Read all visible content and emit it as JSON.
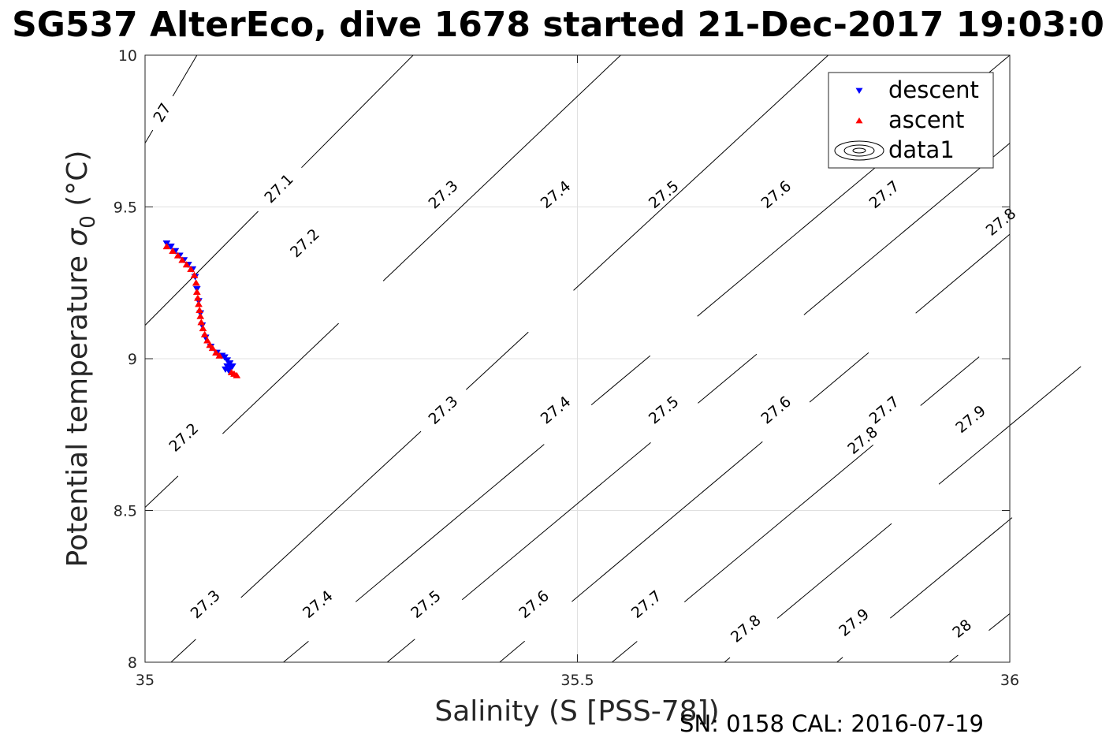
{
  "chart_data": {
    "type": "scatter",
    "title": "SG537 AlterEco, dive 1678 started 21-Dec-2017 19:03:0",
    "xlabel": "Salinity (S [PSS-78])",
    "ylabel_main": "Potential temperature",
    "ylabel_symbol": "σ",
    "ylabel_subscript": "0",
    "ylabel_unit": "(°C)",
    "footer": "SN: 0158  CAL: 2016-07-19",
    "xlim": [
      35,
      36
    ],
    "ylim": [
      8,
      10
    ],
    "x_ticks": [
      {
        "value": 35,
        "label": "35"
      },
      {
        "value": 35.5,
        "label": "35.5"
      },
      {
        "value": 36,
        "label": "36"
      }
    ],
    "y_ticks": [
      {
        "value": 8,
        "label": "8"
      },
      {
        "value": 8.5,
        "label": "8.5"
      },
      {
        "value": 9,
        "label": "9"
      },
      {
        "value": 9.5,
        "label": "9.5"
      },
      {
        "value": 10,
        "label": "10"
      }
    ],
    "grid": true,
    "legend_position": "top-right",
    "colors": {
      "descent": "#0000ff",
      "ascent": "#ff0000",
      "contour": "#000000",
      "grid": "#e0e0e0"
    },
    "series": [
      {
        "name": "descent",
        "marker": "triangle-down",
        "color": "#0000ff",
        "points": [
          [
            35.025,
            9.38
          ],
          [
            35.03,
            9.37
          ],
          [
            35.035,
            9.355
          ],
          [
            35.04,
            9.34
          ],
          [
            35.045,
            9.325
          ],
          [
            35.05,
            9.31
          ],
          [
            35.055,
            9.295
          ],
          [
            35.058,
            9.27
          ],
          [
            35.06,
            9.23
          ],
          [
            35.062,
            9.19
          ],
          [
            35.064,
            9.15
          ],
          [
            35.066,
            9.11
          ],
          [
            35.07,
            9.07
          ],
          [
            35.076,
            9.04
          ],
          [
            35.083,
            9.02
          ],
          [
            35.089,
            9.01
          ],
          [
            35.092,
            9.005
          ],
          [
            35.095,
            8.995
          ],
          [
            35.098,
            8.985
          ],
          [
            35.095,
            8.975
          ],
          [
            35.093,
            8.965
          ],
          [
            35.097,
            8.96
          ],
          [
            35.099,
            8.97
          ],
          [
            35.101,
            8.975
          ]
        ]
      },
      {
        "name": "ascent",
        "marker": "triangle-up",
        "color": "#ff0000",
        "points": [
          [
            35.025,
            9.37
          ],
          [
            35.032,
            9.355
          ],
          [
            35.038,
            9.34
          ],
          [
            35.043,
            9.325
          ],
          [
            35.048,
            9.31
          ],
          [
            35.053,
            9.295
          ],
          [
            35.057,
            9.275
          ],
          [
            35.059,
            9.25
          ],
          [
            35.06,
            9.22
          ],
          [
            35.061,
            9.2
          ],
          [
            35.062,
            9.18
          ],
          [
            35.063,
            9.16
          ],
          [
            35.064,
            9.14
          ],
          [
            35.065,
            9.12
          ],
          [
            35.067,
            9.1
          ],
          [
            35.069,
            9.08
          ],
          [
            35.072,
            9.06
          ],
          [
            35.075,
            9.045
          ],
          [
            35.078,
            9.035
          ],
          [
            35.082,
            9.02
          ],
          [
            35.086,
            9.01
          ],
          [
            35.1,
            8.955
          ],
          [
            35.103,
            8.95
          ],
          [
            35.106,
            8.945
          ]
        ]
      }
    ],
    "contour_series_name": "data1",
    "contours": [
      {
        "sigma": "27",
        "p1": [
          35.0,
          9.71
        ],
        "p2": [
          35.06,
          10.0
        ],
        "labels": [
          [
            35.02,
            9.81
          ]
        ]
      },
      {
        "sigma": "27.1",
        "p1": [
          35.0,
          9.11
        ],
        "p2": [
          35.31,
          10.0
        ],
        "labels": [
          [
            35.155,
            9.56
          ]
        ]
      },
      {
        "sigma": "27.2",
        "p1": [
          35.0,
          8.51
        ],
        "p2": [
          35.55,
          10.0
        ],
        "labels": [
          [
            35.185,
            9.38
          ],
          [
            35.045,
            8.74
          ]
        ]
      },
      {
        "sigma": "27.3",
        "p1": [
          35.03,
          8.0
        ],
        "p2": [
          35.79,
          10.0
        ],
        "labels": [
          [
            35.345,
            8.83
          ],
          [
            35.07,
            8.19
          ],
          [
            35.345,
            9.54
          ]
        ]
      },
      {
        "sigma": "27.4",
        "p1": [
          35.16,
          8.0
        ],
        "p2": [
          36.0,
          10.0
        ],
        "labels": [
          [
            35.475,
            8.83
          ],
          [
            35.2,
            8.19
          ],
          [
            35.475,
            9.54
          ]
        ]
      },
      {
        "sigma": "27.5",
        "p1": [
          35.28,
          8.0
        ],
        "p2": [
          36.0,
          9.71
        ],
        "labels": [
          [
            35.6,
            8.83
          ],
          [
            35.325,
            8.19
          ],
          [
            35.6,
            9.54
          ]
        ]
      },
      {
        "sigma": "27.6",
        "p1": [
          35.41,
          8.0
        ],
        "p2": [
          36.0,
          9.41
        ],
        "labels": [
          [
            35.73,
            8.83
          ],
          [
            35.45,
            8.19
          ],
          [
            35.73,
            9.54
          ]
        ]
      },
      {
        "sigma": "27.7",
        "p1": [
          35.54,
          8.0
        ],
        "p2": [
          36.0,
          9.09
        ],
        "labels": [
          [
            35.855,
            8.83
          ],
          [
            35.58,
            8.19
          ],
          [
            35.855,
            9.54
          ]
        ]
      },
      {
        "sigma": "27.8",
        "p1": [
          35.67,
          8.0
        ],
        "p2": [
          36.0,
          8.78
        ],
        "labels": [
          [
            35.99,
            9.45
          ],
          [
            35.83,
            8.73
          ],
          [
            35.695,
            8.11
          ]
        ]
      },
      {
        "sigma": "27.9",
        "p1": [
          35.8,
          8.0
        ],
        "p2": [
          36.0,
          8.47
        ],
        "labels": [
          [
            35.955,
            8.8
          ],
          [
            35.82,
            8.13
          ]
        ]
      },
      {
        "sigma": "28",
        "p1": [
          35.93,
          8.0
        ],
        "p2": [
          36.0,
          8.16
        ],
        "labels": [
          [
            35.945,
            8.11
          ]
        ]
      }
    ]
  }
}
